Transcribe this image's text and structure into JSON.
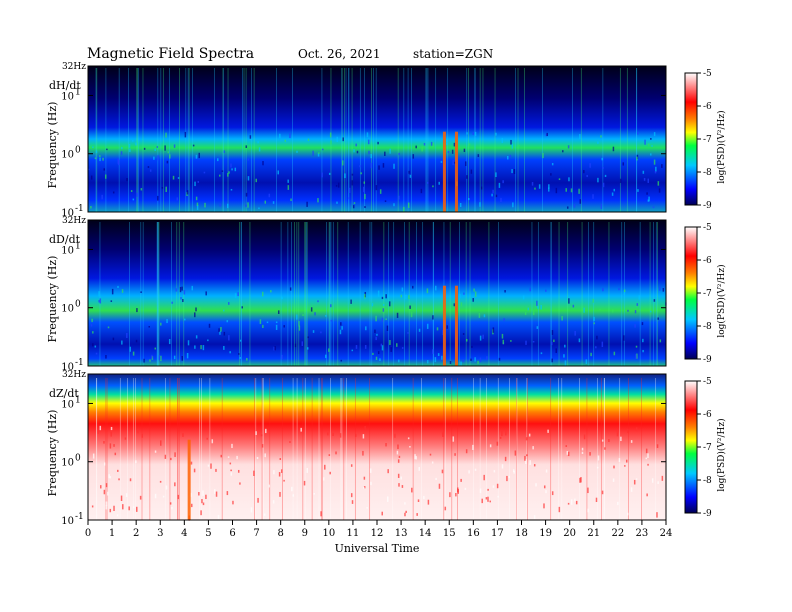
{
  "header": {
    "title": "Magnetic  Field  Spectra",
    "date": "Oct. 26, 2021",
    "station": "station=ZGN"
  },
  "chart_data": {
    "type": "heatmap",
    "x_label": "Universal Time",
    "x_ticks": [
      "0",
      "1",
      "2",
      "3",
      "4",
      "5",
      "6",
      "7",
      "8",
      "9",
      "10",
      "11",
      "12",
      "13",
      "14",
      "15",
      "16",
      "17",
      "18",
      "19",
      "20",
      "21",
      "22",
      "23",
      "24"
    ],
    "xlim": [
      0,
      24
    ],
    "y_label": "Frequency  (Hz)",
    "y_scale": "log",
    "ylim": [
      0.1,
      32
    ],
    "y_ticks": [
      {
        "base": "10",
        "exp": "1",
        "value": 10
      },
      {
        "base": "10",
        "exp": "0",
        "value": 1
      },
      {
        "base": "10",
        "exp": "-1",
        "value": 0.1
      }
    ],
    "y_top_label": "32Hz",
    "colorbar": {
      "label": "log(PSD)(V²/Hz)",
      "ticks": [
        "-5",
        "-6",
        "-7",
        "-8",
        "-9"
      ],
      "range": [
        -9,
        -5
      ],
      "colors": [
        "#000055",
        "#0000ff",
        "#00c8ff",
        "#00ff40",
        "#ffff00",
        "#ff8000",
        "#ff0000",
        "#ffffff"
      ]
    },
    "panels": [
      {
        "name": "dH/dt",
        "background_level": -8.5,
        "band_level": -7.2,
        "band_freq": [
          0.8,
          2.0
        ],
        "spikes": [
          14.8,
          15.3
        ]
      },
      {
        "name": "dD/dt",
        "background_level": -8.5,
        "band_level": -7.3,
        "band_freq": [
          0.5,
          2.0
        ],
        "spikes": [
          14.8,
          15.3
        ]
      },
      {
        "name": "dZ/dt",
        "background_level": -5.4,
        "band_level": -6.8,
        "band_freq": [
          8,
          20
        ],
        "spikes": [
          4.2
        ]
      }
    ]
  }
}
